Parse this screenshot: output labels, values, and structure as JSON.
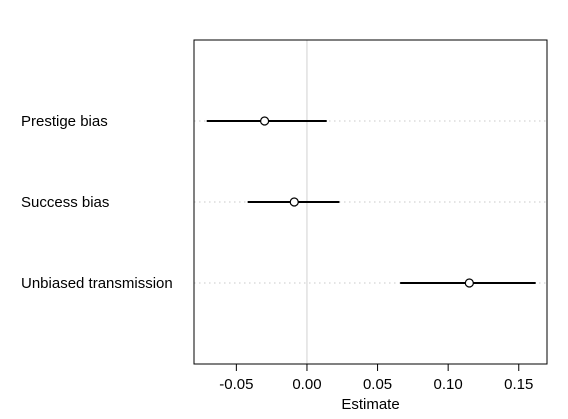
{
  "chart_data": {
    "type": "scatter",
    "subtype": "coefficient-plot",
    "title": "",
    "xlabel": "Estimate",
    "ylabel": "",
    "xlim": [
      -0.08,
      0.17
    ],
    "x_ticks": [
      -0.05,
      0.0,
      0.05,
      0.1,
      0.15
    ],
    "x_tick_labels": [
      "-0.05",
      "0.00",
      "0.05",
      "0.10",
      "0.15"
    ],
    "zero_reference_line": 0.0,
    "grid": "horizontal-dotted",
    "legend": "none",
    "colors": {
      "point": "#000000",
      "interval": "#000000",
      "zero_line": "#d9d9d9",
      "row_guide": "#c8c8c8"
    },
    "categories": [
      "Prestige bias",
      "Success bias",
      "Unbiased transmission"
    ],
    "estimates": [
      -0.03,
      -0.009,
      0.115
    ],
    "lower": [
      -0.071,
      -0.042,
      0.066
    ],
    "upper": [
      0.014,
      0.023,
      0.162
    ]
  }
}
